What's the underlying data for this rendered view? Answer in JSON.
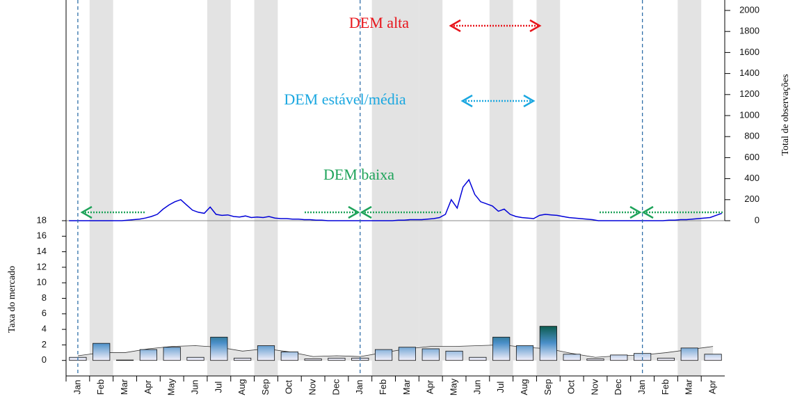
{
  "chart_data": [
    {
      "type": "line",
      "y_label": "Total de observações",
      "ylim": [
        0,
        2000
      ],
      "yticks": [
        0,
        200,
        400,
        600,
        800,
        1000,
        1200,
        1400,
        1600,
        1800,
        2000
      ],
      "color": "#0000d8",
      "values": [
        0,
        0,
        0,
        0,
        0,
        0,
        0,
        0,
        0,
        0,
        5,
        10,
        15,
        25,
        40,
        60,
        110,
        150,
        180,
        200,
        150,
        100,
        80,
        70,
        130,
        60,
        50,
        55,
        40,
        35,
        45,
        30,
        35,
        30,
        40,
        25,
        20,
        20,
        15,
        15,
        10,
        10,
        5,
        5,
        0,
        0,
        0,
        0,
        0,
        0,
        0,
        0,
        0,
        0,
        0,
        0,
        5,
        5,
        10,
        10,
        10,
        15,
        20,
        30,
        60,
        200,
        120,
        320,
        390,
        250,
        180,
        160,
        140,
        90,
        110,
        60,
        40,
        30,
        25,
        20,
        50,
        60,
        55,
        50,
        40,
        30,
        25,
        20,
        15,
        10,
        0,
        0,
        0,
        0,
        0,
        0,
        0,
        0,
        0,
        0,
        0,
        0,
        5,
        5,
        10,
        10,
        15,
        20,
        25,
        30,
        50,
        70
      ],
      "annotations": [
        {
          "text": "DEM alta",
          "color": "#e8141b"
        },
        {
          "text": "DEM estável/média",
          "color": "#1aa7e0"
        },
        {
          "text": "DEM baixa",
          "color": "#1ea35a"
        }
      ]
    },
    {
      "type": "bar",
      "y_label": "Taxa do mercado",
      "ylim": [
        -2,
        18
      ],
      "yticks": [
        0,
        2,
        4,
        6,
        8,
        10,
        12,
        14,
        16,
        18
      ],
      "categories": [
        "Jan",
        "Feb",
        "Mar",
        "Apr",
        "May",
        "Jun",
        "Jul",
        "Aug",
        "Sep",
        "Oct",
        "Nov",
        "Dec",
        "Jan",
        "Feb",
        "Mar",
        "Apr",
        "May",
        "Jun",
        "Jul",
        "Aug",
        "Sep",
        "Oct",
        "Nov",
        "Dec",
        "Jan",
        "Feb",
        "Mar",
        "Apr"
      ],
      "values": [
        0.4,
        2.2,
        0.05,
        1.4,
        1.7,
        0.4,
        3.0,
        0.3,
        1.9,
        1.1,
        0.2,
        0.3,
        0.3,
        1.4,
        1.7,
        1.5,
        1.2,
        0.4,
        3.0,
        1.9,
        4.4,
        0.8,
        0.2,
        0.7,
        0.9,
        0.3,
        1.6,
        0.8
      ],
      "colors": [
        "#f4f0fb",
        "#4a8fc8",
        "#0a5a4a"
      ],
      "area": {
        "color": "#e4e4e4",
        "values": [
          0.6,
          1.0,
          1.0,
          1.5,
          1.8,
          1.9,
          1.7,
          1.2,
          1.5,
          1.1,
          0.5,
          0.6,
          0.5,
          1.0,
          1.5,
          1.8,
          1.8,
          1.9,
          2.0,
          1.7,
          1.5,
          0.9,
          0.4,
          0.6,
          0.7,
          1.0,
          1.4,
          1.8
        ]
      },
      "shaded_months": [
        1,
        6,
        8,
        13,
        14,
        15,
        18,
        20,
        26
      ],
      "divider_months": [
        0,
        12,
        24
      ]
    }
  ]
}
